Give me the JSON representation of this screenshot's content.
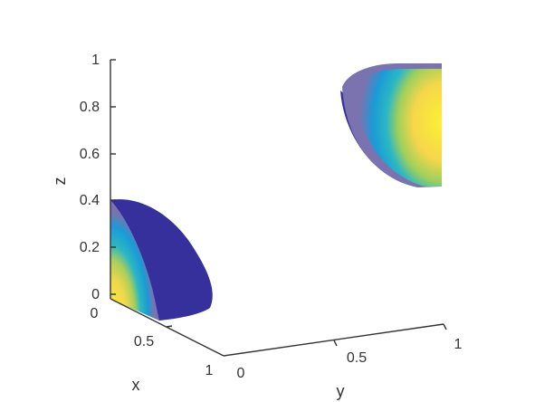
{
  "chart_data": {
    "type": "surface3d",
    "title": "",
    "xlabel": "x",
    "ylabel": "y",
    "zlabel": "z",
    "xlim": [
      0,
      1
    ],
    "ylim": [
      0,
      1
    ],
    "zlim": [
      0,
      1
    ],
    "x_ticks": [
      "0",
      "0.5",
      "1"
    ],
    "y_ticks": [
      "0",
      "0.5",
      "1"
    ],
    "z_ticks": [
      "0",
      "0.2",
      "0.4",
      "0.6",
      "0.8",
      "1"
    ],
    "grid": false,
    "colormap": "parula",
    "colors": {
      "axis": "#333333",
      "dark": "#35309b",
      "mid_blue": "#1a9bd6",
      "cyan": "#2bb7c4",
      "green": "#8ccb5e",
      "yellow": "#f7e040",
      "bright_yellow": "#fdf033",
      "purple": "#7a73b0"
    },
    "objects": [
      {
        "name": "quarter-sphere-near",
        "center_z": 0.0,
        "radius": 0.4
      },
      {
        "name": "quarter-sphere-far",
        "center_z": 0.8,
        "radius": 0.4
      }
    ]
  }
}
